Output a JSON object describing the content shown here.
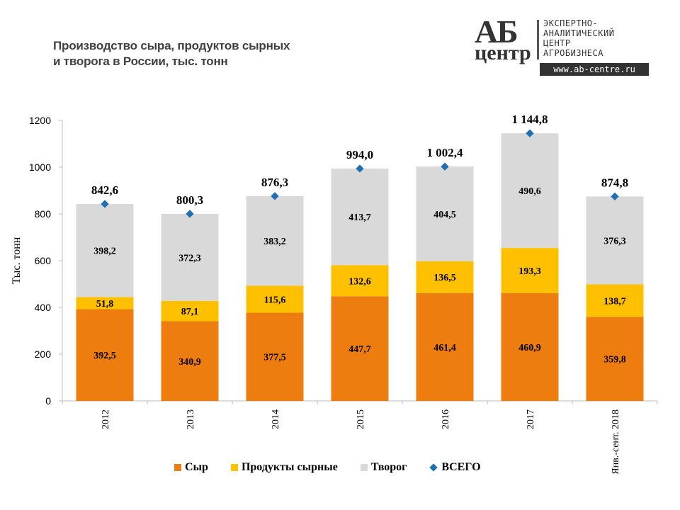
{
  "title": {
    "line1": "Производство сыра, продуктов сырных",
    "line2": "и творога в России, тыс. тонн"
  },
  "logo": {
    "mark_top": "АБ",
    "mark_bottom": "центр",
    "text_lines": [
      "ЭКСПЕРТНО-",
      "АНАЛИТИЧЕСКИЙ",
      "ЦЕНТР",
      "АГРОБИЗНЕСА"
    ],
    "url": "www.ab-centre.ru"
  },
  "colors": {
    "cheese": "#ED7D0E",
    "cheese_products": "#FFC000",
    "cottage": "#D9D9D9",
    "total": "#1F6FB4"
  },
  "chart_data": {
    "type": "bar",
    "stacked": true,
    "categories": [
      "2012",
      "2013",
      "2014",
      "2015",
      "2016",
      "2017",
      "Янв.-сент. 2018"
    ],
    "series": [
      {
        "name": "Сыр",
        "values": [
          392.5,
          340.9,
          377.5,
          447.7,
          461.4,
          460.9,
          359.8
        ],
        "labels": [
          "392,5",
          "340,9",
          "377,5",
          "447,7",
          "461,4",
          "460,9",
          "359,8"
        ]
      },
      {
        "name": "Продукты сырные",
        "values": [
          51.8,
          87.1,
          115.6,
          132.6,
          136.5,
          193.3,
          138.7
        ],
        "labels": [
          "51,8",
          "87,1",
          "115,6",
          "132,6",
          "136,5",
          "193,3",
          "138,7"
        ]
      },
      {
        "name": "Творог",
        "values": [
          398.2,
          372.3,
          383.2,
          413.7,
          404.5,
          490.6,
          376.3
        ],
        "labels": [
          "398,2",
          "372,3",
          "383,2",
          "413,7",
          "404,5",
          "490,6",
          "376,3"
        ]
      }
    ],
    "total": {
      "name": "ВСЕГО",
      "type": "scatter",
      "values": [
        842.6,
        800.3,
        876.3,
        994.0,
        1002.4,
        1144.8,
        874.8
      ],
      "labels": [
        "842,6",
        "800,3",
        "876,3",
        "994,0",
        "1 002,4",
        "1 144,8",
        "874,8"
      ]
    },
    "ylabel": "Тыс. тонн",
    "ylim": [
      0,
      1200
    ],
    "yticks": [
      0,
      200,
      400,
      600,
      800,
      1000,
      1200
    ],
    "grid": false,
    "legend": "bottom"
  }
}
